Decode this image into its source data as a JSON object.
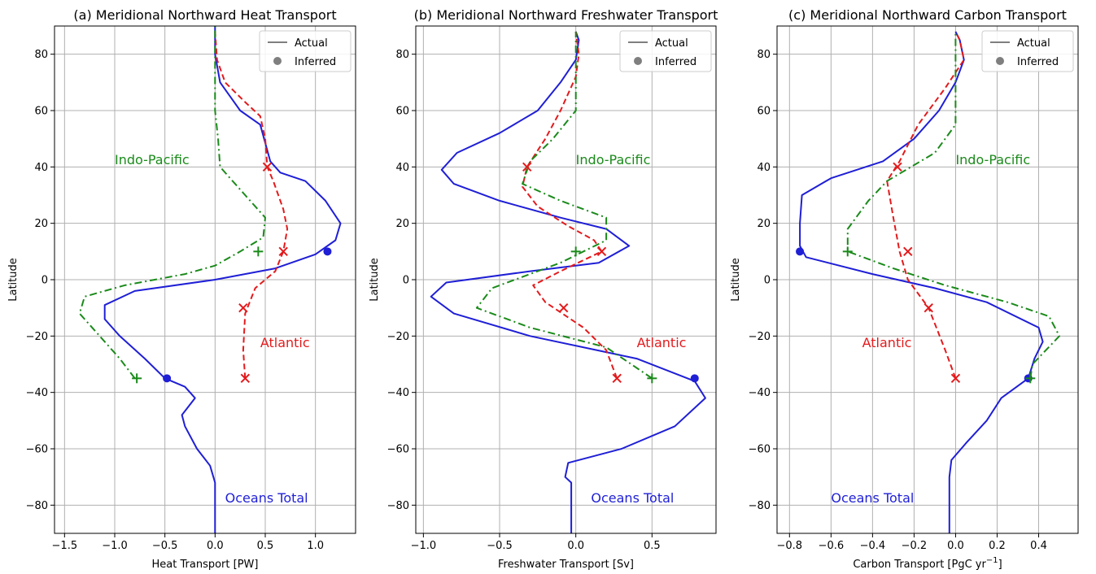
{
  "chart_data": [
    {
      "type": "line",
      "title": "(a) Meridional Northward Heat Transport",
      "xlabel": "Heat Transport [PW]",
      "ylabel": "Latitude",
      "xlim": [
        -1.6,
        1.4
      ],
      "ylim": [
        -90,
        90
      ],
      "xticks": [
        -1.5,
        -1.0,
        -0.5,
        0.0,
        0.5,
        1.0
      ],
      "xtick_labels": [
        "−1.5",
        "−1.0",
        "−0.5",
        "0.0",
        "0.5",
        "1.0"
      ],
      "yticks": [
        -80,
        -60,
        -40,
        -20,
        0,
        20,
        40,
        60,
        80
      ],
      "ytick_labels": [
        "−80",
        "−60",
        "−40",
        "−20",
        "0",
        "20",
        "40",
        "60",
        "80"
      ],
      "grid": true,
      "legend": {
        "placement": "top-right",
        "entries": [
          "Actual",
          "Inferred"
        ]
      },
      "annotations": [
        {
          "text": "Indo-Pacific",
          "x": -1.0,
          "y": 41,
          "color": "#1a8a1a"
        },
        {
          "text": "Atlantic",
          "x": 0.45,
          "y": -24,
          "color": "#e31a1c"
        },
        {
          "text": "Oceans Total",
          "x": 0.1,
          "y": -79,
          "color": "#1f1fd6"
        }
      ],
      "series": [
        {
          "label": "Oceans Total",
          "color": "#1f1fd6",
          "dash": "",
          "points": [
            [
              0,
              -90
            ],
            [
              0,
              -72
            ],
            [
              -0.05,
              -66
            ],
            [
              -0.18,
              -60
            ],
            [
              -0.3,
              -52
            ],
            [
              -0.33,
              -48
            ],
            [
              -0.2,
              -42
            ],
            [
              -0.3,
              -38
            ],
            [
              -0.5,
              -35
            ],
            [
              -0.7,
              -28
            ],
            [
              -0.95,
              -20
            ],
            [
              -1.1,
              -14
            ],
            [
              -1.1,
              -9
            ],
            [
              -0.8,
              -4
            ],
            [
              0,
              0
            ],
            [
              0.6,
              4
            ],
            [
              1.0,
              9
            ],
            [
              1.2,
              14
            ],
            [
              1.25,
              20
            ],
            [
              1.1,
              28
            ],
            [
              0.9,
              35
            ],
            [
              0.65,
              38
            ],
            [
              0.55,
              42
            ],
            [
              0.45,
              55
            ],
            [
              0.25,
              60
            ],
            [
              0.05,
              70
            ],
            [
              0,
              80
            ],
            [
              0,
              90
            ]
          ]
        },
        {
          "label": "Atlantic",
          "color": "#e31a1c",
          "dash": "7,4",
          "points": [
            [
              0.3,
              -35
            ],
            [
              0.28,
              -25
            ],
            [
              0.3,
              -12
            ],
            [
              0.4,
              -3
            ],
            [
              0.6,
              3
            ],
            [
              0.68,
              10
            ],
            [
              0.72,
              18
            ],
            [
              0.68,
              25
            ],
            [
              0.58,
              35
            ],
            [
              0.52,
              40
            ],
            [
              0.5,
              50
            ],
            [
              0.45,
              58
            ],
            [
              0.3,
              63
            ],
            [
              0.1,
              70
            ],
            [
              0.02,
              78
            ],
            [
              0,
              88
            ]
          ]
        },
        {
          "label": "Indo-Pacific",
          "color": "#1a8a1a",
          "dash": "9,4,2,4",
          "points": [
            [
              -0.8,
              -35
            ],
            [
              -0.95,
              -28
            ],
            [
              -1.15,
              -20
            ],
            [
              -1.35,
              -12
            ],
            [
              -1.3,
              -6
            ],
            [
              -0.9,
              -2
            ],
            [
              -0.3,
              2
            ],
            [
              0,
              5
            ],
            [
              0.25,
              10
            ],
            [
              0.48,
              15
            ],
            [
              0.5,
              22
            ],
            [
              0.3,
              30
            ],
            [
              0.15,
              36
            ],
            [
              0.05,
              40
            ],
            [
              0.03,
              50
            ],
            [
              0.0,
              60
            ],
            [
              0.0,
              75
            ],
            [
              0,
              90
            ]
          ]
        }
      ],
      "inferred_markers": [
        {
          "shape": "circle",
          "color": "#1f1fd6",
          "x": 1.12,
          "y": 10
        },
        {
          "shape": "circle",
          "color": "#1f1fd6",
          "x": -0.48,
          "y": -35
        },
        {
          "shape": "x",
          "color": "#e31a1c",
          "x": 0.52,
          "y": 40
        },
        {
          "shape": "x",
          "color": "#e31a1c",
          "x": 0.68,
          "y": 10
        },
        {
          "shape": "x",
          "color": "#e31a1c",
          "x": 0.28,
          "y": -10
        },
        {
          "shape": "x",
          "color": "#e31a1c",
          "x": 0.3,
          "y": -35
        },
        {
          "shape": "plus",
          "color": "#1a8a1a",
          "x": 0.43,
          "y": 10
        },
        {
          "shape": "plus",
          "color": "#1a8a1a",
          "x": -0.78,
          "y": -35
        }
      ]
    },
    {
      "type": "line",
      "title": "(b) Meridional Northward Freshwater Transport",
      "xlabel": "Freshwater Transport [Sv]",
      "ylabel": "Latitude",
      "xlim": [
        -1.05,
        0.92
      ],
      "ylim": [
        -90,
        90
      ],
      "xticks": [
        -1.0,
        -0.5,
        0.0,
        0.5
      ],
      "xtick_labels": [
        "−1.0",
        "−0.5",
        "0.0",
        "0.5"
      ],
      "yticks": [
        -80,
        -60,
        -40,
        -20,
        0,
        20,
        40,
        60,
        80
      ],
      "ytick_labels": [
        "−80",
        "−60",
        "−40",
        "−20",
        "0",
        "20",
        "40",
        "60",
        "80"
      ],
      "grid": true,
      "legend": {
        "placement": "top-right",
        "entries": [
          "Actual",
          "Inferred"
        ]
      },
      "annotations": [
        {
          "text": "Indo-Pacific",
          "x": 0.0,
          "y": 41,
          "color": "#1a8a1a"
        },
        {
          "text": "Atlantic",
          "x": 0.4,
          "y": -24,
          "color": "#e31a1c"
        },
        {
          "text": "Oceans Total",
          "x": 0.1,
          "y": -79,
          "color": "#1f1fd6"
        }
      ],
      "series": [
        {
          "label": "Oceans Total",
          "color": "#1f1fd6",
          "dash": "",
          "points": [
            [
              -0.03,
              -90
            ],
            [
              -0.03,
              -72
            ],
            [
              -0.07,
              -70
            ],
            [
              -0.05,
              -65
            ],
            [
              0.3,
              -60
            ],
            [
              0.65,
              -52
            ],
            [
              0.85,
              -42
            ],
            [
              0.78,
              -36
            ],
            [
              0.4,
              -28
            ],
            [
              -0.3,
              -20
            ],
            [
              -0.8,
              -12
            ],
            [
              -0.95,
              -6
            ],
            [
              -0.85,
              -1
            ],
            [
              -0.3,
              3
            ],
            [
              0.15,
              6
            ],
            [
              0.35,
              12
            ],
            [
              0.2,
              18
            ],
            [
              -0.1,
              22
            ],
            [
              -0.5,
              28
            ],
            [
              -0.8,
              34
            ],
            [
              -0.88,
              39
            ],
            [
              -0.78,
              45
            ],
            [
              -0.5,
              52
            ],
            [
              -0.25,
              60
            ],
            [
              -0.1,
              70
            ],
            [
              0.0,
              78
            ],
            [
              0.02,
              85
            ],
            [
              0,
              88
            ]
          ]
        },
        {
          "label": "Atlantic",
          "color": "#e31a1c",
          "dash": "7,4",
          "points": [
            [
              0.27,
              -35
            ],
            [
              0.2,
              -25
            ],
            [
              0.05,
              -17
            ],
            [
              -0.2,
              -8
            ],
            [
              -0.28,
              -2
            ],
            [
              -0.1,
              3
            ],
            [
              0.17,
              10
            ],
            [
              0.12,
              14
            ],
            [
              -0.05,
              19
            ],
            [
              -0.25,
              26
            ],
            [
              -0.35,
              33
            ],
            [
              -0.32,
              40
            ],
            [
              -0.2,
              50
            ],
            [
              -0.1,
              60
            ],
            [
              0.0,
              72
            ],
            [
              0.02,
              80
            ],
            [
              0,
              88
            ]
          ]
        },
        {
          "label": "Indo-Pacific",
          "color": "#1a8a1a",
          "dash": "9,4,2,4",
          "points": [
            [
              0.5,
              -35
            ],
            [
              0.2,
              -24
            ],
            [
              -0.3,
              -17
            ],
            [
              -0.65,
              -10
            ],
            [
              -0.55,
              -3
            ],
            [
              -0.1,
              6
            ],
            [
              0.2,
              14
            ],
            [
              0.2,
              22
            ],
            [
              -0.1,
              28
            ],
            [
              -0.35,
              34
            ],
            [
              -0.3,
              42
            ],
            [
              -0.15,
              50
            ],
            [
              0.0,
              60
            ],
            [
              0.0,
              75
            ],
            [
              0,
              88
            ]
          ]
        }
      ],
      "inferred_markers": [
        {
          "shape": "circle",
          "color": "#1f1fd6",
          "x": 0.78,
          "y": -35
        },
        {
          "shape": "x",
          "color": "#e31a1c",
          "x": -0.32,
          "y": 40
        },
        {
          "shape": "x",
          "color": "#e31a1c",
          "x": 0.17,
          "y": 10
        },
        {
          "shape": "x",
          "color": "#e31a1c",
          "x": -0.08,
          "y": -10
        },
        {
          "shape": "x",
          "color": "#e31a1c",
          "x": 0.27,
          "y": -35
        },
        {
          "shape": "plus",
          "color": "#1a8a1a",
          "x": 0.0,
          "y": 10
        },
        {
          "shape": "plus",
          "color": "#1a8a1a",
          "x": 0.5,
          "y": -35
        }
      ]
    },
    {
      "type": "line",
      "title": "(c) Meridional Northward Carbon Transport",
      "xlabel": "Carbon Transport [PgC yr−1]",
      "ylabel": "Latitude",
      "xlim": [
        -0.86,
        0.59
      ],
      "ylim": [
        -90,
        90
      ],
      "xticks": [
        -0.8,
        -0.6,
        -0.4,
        -0.2,
        0.0,
        0.2,
        0.4
      ],
      "xtick_labels": [
        "−0.8",
        "−0.6",
        "−0.4",
        "−0.2",
        "0.0",
        "0.2",
        "0.4"
      ],
      "yticks": [
        -80,
        -60,
        -40,
        -20,
        0,
        20,
        40,
        60,
        80
      ],
      "ytick_labels": [
        "−80",
        "−60",
        "−40",
        "−20",
        "0",
        "20",
        "40",
        "60",
        "80"
      ],
      "grid": true,
      "legend": {
        "placement": "top-right",
        "entries": [
          "Actual",
          "Inferred"
        ]
      },
      "annotations": [
        {
          "text": "Indo-Pacific",
          "x": 0.0,
          "y": 41,
          "color": "#1a8a1a"
        },
        {
          "text": "Atlantic",
          "x": -0.45,
          "y": -24,
          "color": "#e31a1c"
        },
        {
          "text": "Oceans Total",
          "x": -0.6,
          "y": -79,
          "color": "#1f1fd6"
        }
      ],
      "series": [
        {
          "label": "Oceans Total",
          "color": "#1f1fd6",
          "dash": "",
          "points": [
            [
              -0.03,
              -90
            ],
            [
              -0.03,
              -70
            ],
            [
              -0.02,
              -64
            ],
            [
              0.05,
              -58
            ],
            [
              0.15,
              -50
            ],
            [
              0.22,
              -42
            ],
            [
              0.35,
              -35
            ],
            [
              0.38,
              -28
            ],
            [
              0.42,
              -22
            ],
            [
              0.4,
              -17
            ],
            [
              0.15,
              -8
            ],
            [
              -0.1,
              -3
            ],
            [
              -0.4,
              2
            ],
            [
              -0.72,
              8
            ],
            [
              -0.75,
              12
            ],
            [
              -0.75,
              20
            ],
            [
              -0.74,
              30
            ],
            [
              -0.6,
              36
            ],
            [
              -0.35,
              42
            ],
            [
              -0.2,
              50
            ],
            [
              -0.08,
              60
            ],
            [
              0.0,
              70
            ],
            [
              0.04,
              78
            ],
            [
              0.02,
              85
            ],
            [
              0,
              88
            ]
          ]
        },
        {
          "label": "Atlantic",
          "color": "#e31a1c",
          "dash": "7,4",
          "points": [
            [
              0.0,
              -35
            ],
            [
              -0.05,
              -25
            ],
            [
              -0.13,
              -10
            ],
            [
              -0.23,
              0
            ],
            [
              -0.27,
              10
            ],
            [
              -0.3,
              22
            ],
            [
              -0.33,
              35
            ],
            [
              -0.27,
              42
            ],
            [
              -0.18,
              55
            ],
            [
              -0.05,
              68
            ],
            [
              0.04,
              78
            ],
            [
              0.02,
              85
            ],
            [
              0,
              88
            ]
          ]
        },
        {
          "label": "Indo-Pacific",
          "color": "#1a8a1a",
          "dash": "9,4,2,4",
          "points": [
            [
              0.36,
              -35
            ],
            [
              0.37,
              -30
            ],
            [
              0.5,
              -20
            ],
            [
              0.45,
              -13
            ],
            [
              0.25,
              -8
            ],
            [
              -0.05,
              -2
            ],
            [
              -0.3,
              4
            ],
            [
              -0.52,
              10
            ],
            [
              -0.52,
              18
            ],
            [
              -0.42,
              28
            ],
            [
              -0.33,
              35
            ],
            [
              -0.1,
              45
            ],
            [
              0.0,
              55
            ],
            [
              0.0,
              70
            ],
            [
              0,
              88
            ]
          ]
        }
      ],
      "inferred_markers": [
        {
          "shape": "circle",
          "color": "#1f1fd6",
          "x": -0.75,
          "y": 10
        },
        {
          "shape": "circle",
          "color": "#1f1fd6",
          "x": 0.35,
          "y": -35
        },
        {
          "shape": "x",
          "color": "#e31a1c",
          "x": -0.28,
          "y": 40
        },
        {
          "shape": "x",
          "color": "#e31a1c",
          "x": -0.23,
          "y": 10
        },
        {
          "shape": "x",
          "color": "#e31a1c",
          "x": -0.13,
          "y": -10
        },
        {
          "shape": "x",
          "color": "#e31a1c",
          "x": 0.0,
          "y": -35
        },
        {
          "shape": "plus",
          "color": "#1a8a1a",
          "x": -0.52,
          "y": 10
        },
        {
          "shape": "plus",
          "color": "#1a8a1a",
          "x": 0.36,
          "y": -35
        }
      ]
    }
  ]
}
